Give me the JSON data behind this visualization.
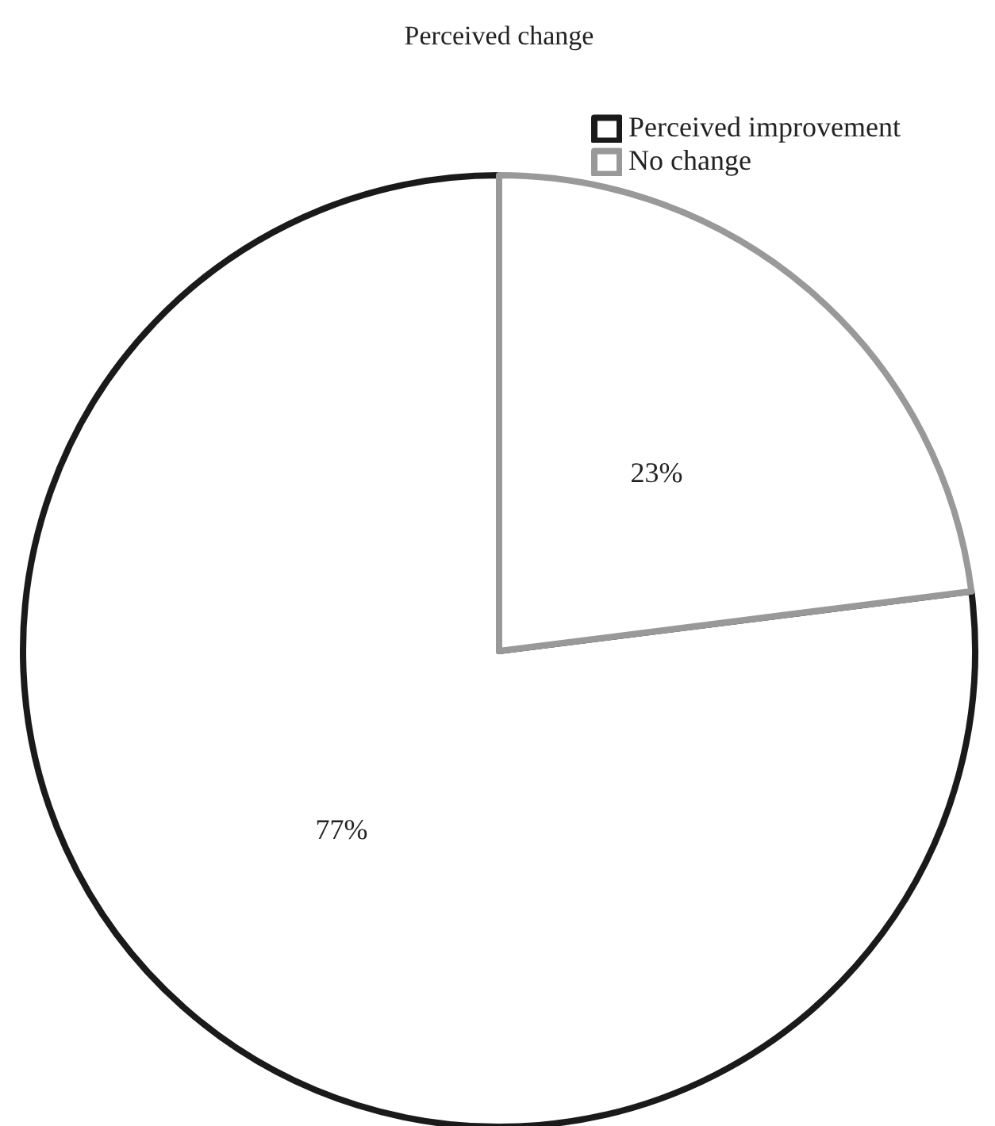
{
  "chart_data": {
    "type": "pie",
    "title": "Perceived change",
    "categories": [
      "Perceived improvement",
      "No change"
    ],
    "values": [
      77,
      23
    ],
    "colors": [
      "#1a1a1a",
      "#999999"
    ],
    "value_labels": [
      "77%",
      "23%"
    ],
    "legend": "top right"
  }
}
